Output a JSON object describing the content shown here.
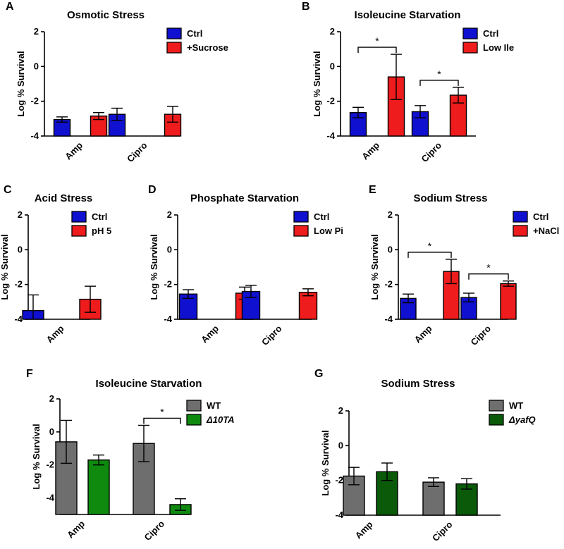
{
  "figure": {
    "width": 800,
    "height": 779
  },
  "chart_data": [
    {
      "id": "A",
      "panel_label": "A",
      "type": "bar",
      "title": "Osmotic Stress",
      "ylabel": "Log % Survival",
      "ylim": [
        -4,
        2
      ],
      "yticks": [
        2,
        0,
        -2,
        -4
      ],
      "categories": [
        "Amp",
        "Cipro"
      ],
      "series": [
        {
          "name": "Ctrl",
          "color": "#1010d0",
          "values": [
            -3.05,
            -2.75
          ],
          "errors": [
            0.15,
            0.35
          ]
        },
        {
          "name": "+Sucrose",
          "color": "#ee1c1c",
          "values": [
            -2.85,
            -2.75
          ],
          "errors": [
            0.2,
            0.45
          ]
        }
      ],
      "significance": []
    },
    {
      "id": "B",
      "panel_label": "B",
      "type": "bar",
      "title": "Isoleucine Starvation",
      "ylabel": "Log % Survival",
      "ylim": [
        -4,
        2
      ],
      "yticks": [
        2,
        0,
        -2,
        -4
      ],
      "categories": [
        "Amp",
        "Cipro"
      ],
      "series": [
        {
          "name": "Ctrl",
          "color": "#1010d0",
          "values": [
            -2.65,
            -2.6
          ],
          "errors": [
            0.3,
            0.35
          ]
        },
        {
          "name": "Low Ile",
          "color": "#ee1c1c",
          "values": [
            -0.6,
            -1.65
          ],
          "errors": [
            1.3,
            0.45
          ]
        }
      ],
      "significance": [
        {
          "category": 0,
          "label": "*"
        },
        {
          "category": 1,
          "label": "*"
        }
      ]
    },
    {
      "id": "C",
      "panel_label": "C",
      "type": "bar",
      "title": "Acid Stress",
      "ylabel": "Log % Survival",
      "ylim": [
        -4,
        2
      ],
      "yticks": [
        2,
        0,
        -2,
        -4
      ],
      "categories": [
        "Amp"
      ],
      "series": [
        {
          "name": "Ctrl",
          "color": "#1010d0",
          "values": [
            -3.5
          ],
          "errors": [
            0.9
          ]
        },
        {
          "name": "pH 5",
          "color": "#ee1c1c",
          "values": [
            -2.85
          ],
          "errors": [
            0.75
          ]
        }
      ],
      "significance": []
    },
    {
      "id": "D",
      "panel_label": "D",
      "type": "bar",
      "title": "Phosphate Starvation",
      "ylabel": "Log % Survival",
      "ylim": [
        -4,
        2
      ],
      "yticks": [
        2,
        0,
        -2,
        -4
      ],
      "categories": [
        "Amp",
        "Cipro"
      ],
      "series": [
        {
          "name": "Ctrl",
          "color": "#1010d0",
          "values": [
            -2.55,
            -2.4
          ],
          "errors": [
            0.25,
            0.35
          ]
        },
        {
          "name": "Low Pi",
          "color": "#ee1c1c",
          "values": [
            -2.5,
            -2.45
          ],
          "errors": [
            0.35,
            0.2
          ]
        }
      ],
      "significance": []
    },
    {
      "id": "E",
      "panel_label": "E",
      "type": "bar",
      "title": "Sodium Stress",
      "ylabel": "Log % Survival",
      "ylim": [
        -4,
        2
      ],
      "yticks": [
        2,
        0,
        -2,
        -4
      ],
      "categories": [
        "Amp",
        "Cipro"
      ],
      "series": [
        {
          "name": "Ctrl",
          "color": "#1010d0",
          "values": [
            -2.8,
            -2.75
          ],
          "errors": [
            0.25,
            0.25
          ]
        },
        {
          "name": "+NaCl",
          "color": "#ee1c1c",
          "values": [
            -1.25,
            -1.95
          ],
          "errors": [
            0.7,
            0.15
          ]
        }
      ],
      "significance": [
        {
          "category": 0,
          "label": "*"
        },
        {
          "category": 1,
          "label": "*"
        }
      ]
    },
    {
      "id": "F",
      "panel_label": "F",
      "type": "bar",
      "title": "Isoleucine Starvation",
      "ylabel": "Log % Survival",
      "ylim": [
        -5,
        2
      ],
      "yticks": [
        2,
        0,
        -2,
        -4
      ],
      "categories": [
        "Amp",
        "Cipro"
      ],
      "series": [
        {
          "name": "WT",
          "color": "#6e6e6e",
          "values": [
            -0.6,
            -0.7
          ],
          "errors": [
            1.3,
            1.1
          ]
        },
        {
          "name": "Δ10TA",
          "italic": true,
          "color": "#0f8a0f",
          "values": [
            -1.7,
            -4.4
          ],
          "errors": [
            0.3,
            0.35
          ]
        }
      ],
      "series_layout": "paired",
      "significance": [
        {
          "category": 1,
          "label": "*"
        }
      ]
    },
    {
      "id": "G",
      "panel_label": "G",
      "type": "bar",
      "title": "Sodium Stress",
      "ylabel": "Log % Survival",
      "ylim": [
        -4,
        2
      ],
      "yticks": [
        2,
        0,
        -2,
        -4
      ],
      "categories": [
        "Amp",
        "Cipro"
      ],
      "series": [
        {
          "name": "WT",
          "color": "#6e6e6e",
          "values": [
            -1.75,
            -2.1
          ],
          "errors": [
            0.5,
            0.25
          ]
        },
        {
          "name": "ΔyafQ",
          "italic": true,
          "color": "#0a5a0a",
          "values": [
            -1.5,
            -2.2
          ],
          "errors": [
            0.5,
            0.3
          ]
        }
      ],
      "significance": []
    }
  ]
}
